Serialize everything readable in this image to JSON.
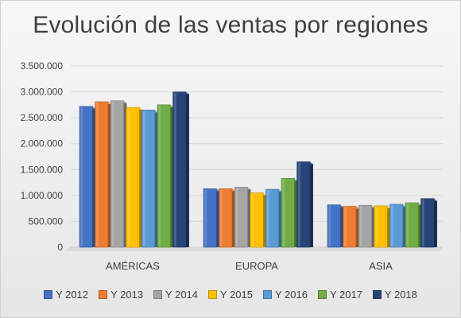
{
  "chart_data": {
    "type": "bar",
    "title": "Evolución de las ventas por regiones",
    "categories": [
      "AMÉRICAS",
      "EUROPA",
      "ASIA"
    ],
    "series": [
      {
        "name": "Y 2012",
        "values": [
          2720000,
          1130000,
          820000
        ],
        "color": "#4472C4"
      },
      {
        "name": "Y 2013",
        "values": [
          2810000,
          1130000,
          790000
        ],
        "color": "#ED7D31"
      },
      {
        "name": "Y 2014",
        "values": [
          2830000,
          1160000,
          810000
        ],
        "color": "#A5A5A5"
      },
      {
        "name": "Y 2015",
        "values": [
          2700000,
          1050000,
          800000
        ],
        "color": "#FFC000"
      },
      {
        "name": "Y 2016",
        "values": [
          2650000,
          1120000,
          830000
        ],
        "color": "#5B9BD5"
      },
      {
        "name": "Y 2017",
        "values": [
          2750000,
          1330000,
          860000
        ],
        "color": "#70AD47"
      },
      {
        "name": "Y 2018",
        "values": [
          3000000,
          1650000,
          940000
        ],
        "color": "#264478"
      }
    ],
    "ylim": [
      0,
      3500000
    ],
    "yticks": [
      0,
      500000,
      1000000,
      1500000,
      2000000,
      2500000,
      3000000,
      3500000
    ],
    "ytick_labels": [
      "0",
      "500.000",
      "1.000.000",
      "1.500.000",
      "2.000.000",
      "2.500.000",
      "3.000.000",
      "3.500.000"
    ],
    "xlabel": "",
    "ylabel": "",
    "grid": true,
    "legend_position": "bottom"
  }
}
